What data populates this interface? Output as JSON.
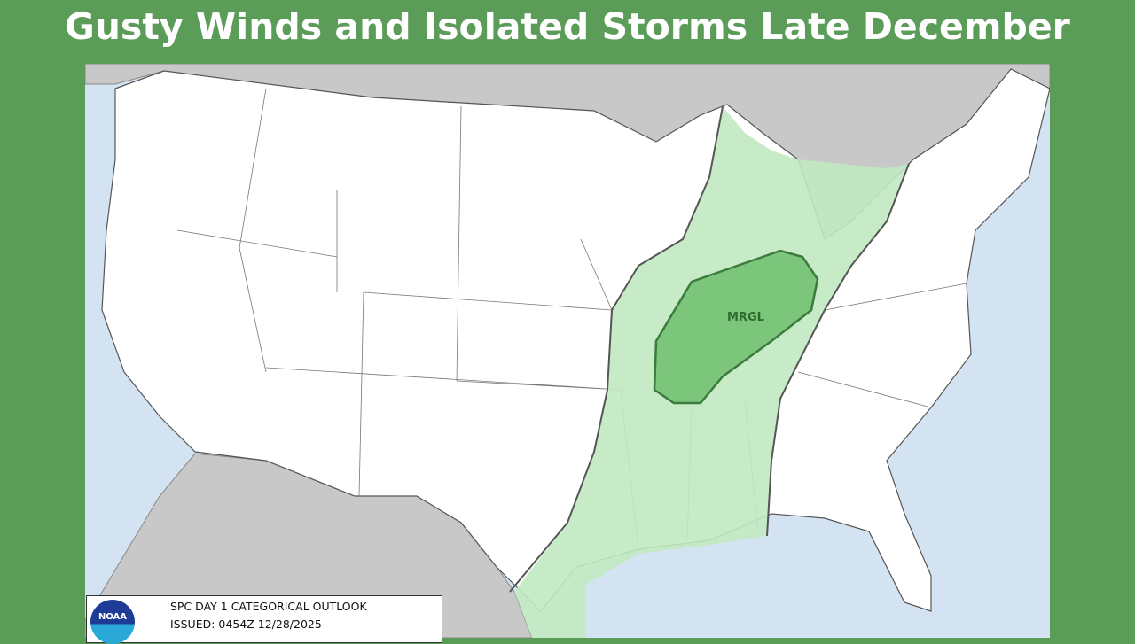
{
  "title": "Gusty Winds and Isolated Storms Late December",
  "map": {
    "risk_label": "MRGL",
    "colors": {
      "water": "#d3e3f2",
      "foreign_land": "#c8c8c8",
      "us_land": "#ffffff",
      "tstm": "#c1e9c1",
      "mrgl": "#7cc67c",
      "mrgl_outline": "#3d7a3d"
    }
  },
  "legend": {
    "logo_text": "NOAA",
    "line1": "SPC DAY 1 CATEGORICAL OUTLOOK",
    "line2": "ISSUED: 0454Z 12/28/2025"
  }
}
